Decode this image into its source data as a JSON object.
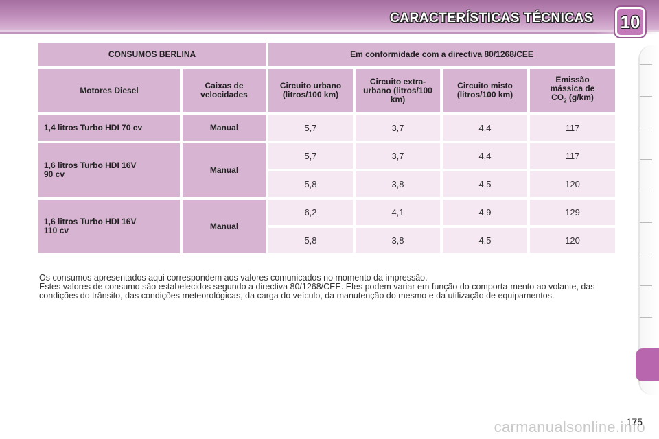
{
  "header": {
    "title": "CARACTERÍSTICAS TÉCNICAS",
    "chapter_number": "10"
  },
  "table": {
    "header_row_1": {
      "left": "CONSUMOS BERLINA",
      "right": "Em conformidade com a directiva 80/1268/CEE"
    },
    "header_row_2": {
      "engines": "Motores Diesel",
      "gearboxes": "Caixas de velocidades",
      "urban": "Circuito urbano (litros/100 km)",
      "extra_urban": "Circuito extra-urbano (litros/100 km)",
      "mixed": "Circuito misto (litros/100 km)",
      "co2_prefix": "Emissão mássica de CO",
      "co2_sub": "2",
      "co2_suffix": " (g/km)"
    },
    "groups": [
      {
        "engine": "1,4 litros Turbo HDI 70 cv",
        "gearbox": "Manual",
        "rows": [
          {
            "urban": "5,7",
            "extra_urban": "3,7",
            "mixed": "4,4",
            "co2": "117"
          }
        ]
      },
      {
        "engine": "1,6 litros Turbo HDI 16V 90 cv",
        "gearbox": "Manual",
        "rows": [
          {
            "urban": "5,7",
            "extra_urban": "3,7",
            "mixed": "4,4",
            "co2": "117"
          },
          {
            "urban": "5,8",
            "extra_urban": "3,8",
            "mixed": "4,5",
            "co2": "120"
          }
        ]
      },
      {
        "engine": "1,6 litros Turbo HDI 16V 110 cv",
        "gearbox": "Manual",
        "rows": [
          {
            "urban": "6,2",
            "extra_urban": "4,1",
            "mixed": "4,9",
            "co2": "129"
          },
          {
            "urban": "5,8",
            "extra_urban": "3,8",
            "mixed": "4,5",
            "co2": "120"
          }
        ]
      }
    ]
  },
  "footnote": {
    "line1": "Os consumos apresentados aqui correspondem aos valores comunicados no momento da impressão.",
    "line2": "Estes valores de consumo são estabelecidos segundo a directiva 80/1268/CEE. Eles podem variar em função do comporta-mento ao volante, das condições do trânsito, das condições meteorológicas, da carga do veículo, da manutenção do mesmo e da utilização de equipamentos."
  },
  "page_number": "175",
  "watermark": "carmanualsonline.info",
  "colors": {
    "header_band": "#b883b2",
    "header_cell": "#d6b4d2",
    "value_cell": "#f5e8f3",
    "active_tab": "#b866ad"
  }
}
